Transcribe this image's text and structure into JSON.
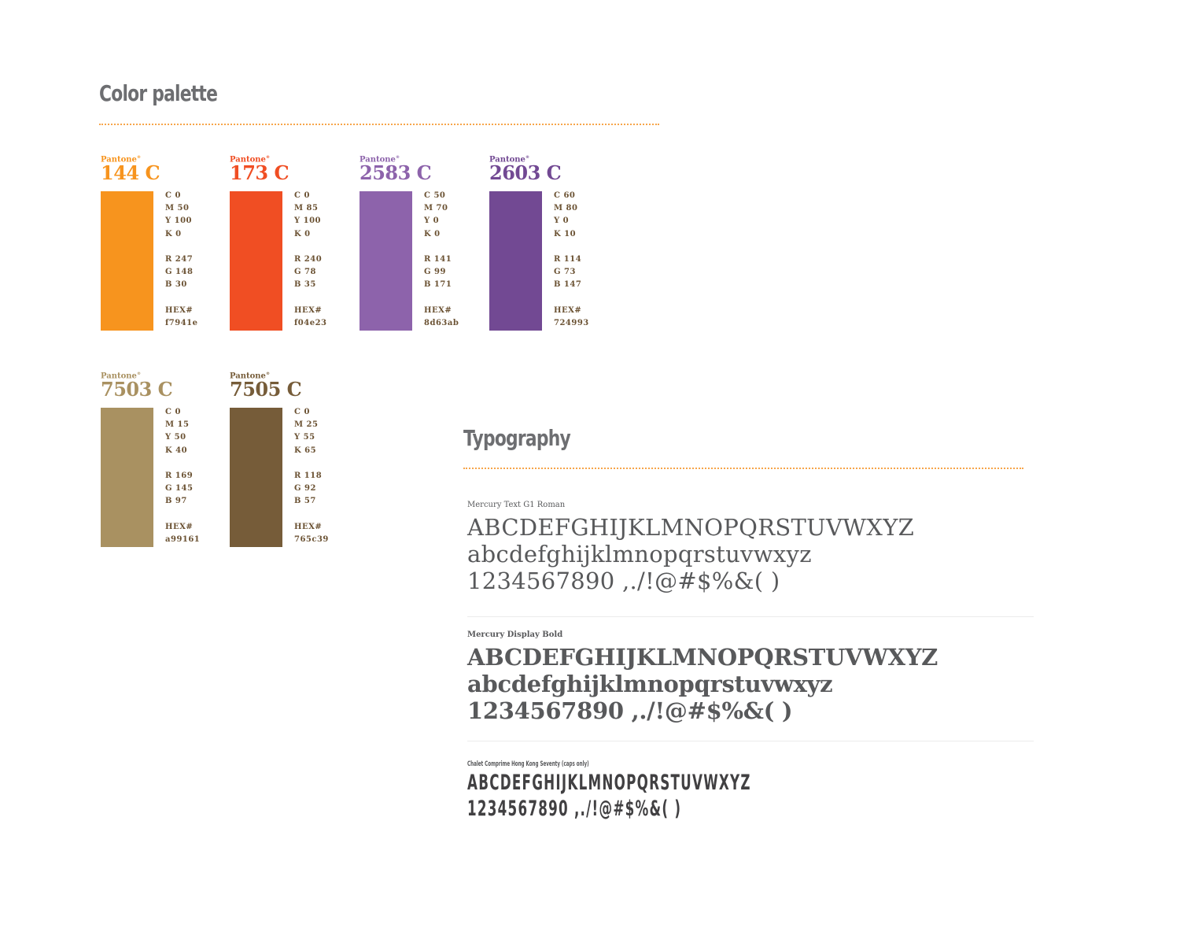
{
  "palette": {
    "title": "Color palette",
    "swatches": [
      {
        "label": "Pantone",
        "code": "144 C",
        "color": "#f7941e",
        "text_color": "#f7941e",
        "c": "C 0",
        "m": "M 50",
        "y": "Y 100",
        "k": "K 0",
        "r": "R 247",
        "g": "G 148",
        "b": "B 30",
        "hex_label": "HEX#",
        "hex": "f7941e"
      },
      {
        "label": "Pantone",
        "code": "173 C",
        "color": "#f04e23",
        "text_color": "#f04e23",
        "c": "C 0",
        "m": "M 85",
        "y": "Y 100",
        "k": "K 0",
        "r": "R 240",
        "g": "G 78",
        "b": "B 35",
        "hex_label": "HEX#",
        "hex": "f04e23"
      },
      {
        "label": "Pantone",
        "code": "2583 C",
        "color": "#8d63ab",
        "text_color": "#8d63ab",
        "c": "C 50",
        "m": "M 70",
        "y": "Y 0",
        "k": "K 0",
        "r": "R 141",
        "g": "G 99",
        "b": "B 171",
        "hex_label": "HEX#",
        "hex": "8d63ab"
      },
      {
        "label": "Pantone",
        "code": "2603 C",
        "color": "#724993",
        "text_color": "#724993",
        "c": "C 60",
        "m": "M 80",
        "y": "Y 0",
        "k": "K 10",
        "r": "R 114",
        "g": "G 73",
        "b": "B 147",
        "hex_label": "HEX#",
        "hex": "724993"
      },
      {
        "label": "Pantone",
        "code": "7503 C",
        "color": "#a99161",
        "text_color": "#a99161",
        "c": "C 0",
        "m": "M 15",
        "y": "Y 50",
        "k": "K 40",
        "r": "R 169",
        "g": "G 145",
        "b": "B 97",
        "hex_label": "HEX#",
        "hex": "a99161"
      },
      {
        "label": "Pantone",
        "code": "7505 C",
        "color": "#765c39",
        "text_color": "#765c39",
        "c": "C 0",
        "m": "M 25",
        "y": "Y 55",
        "k": "K 65",
        "r": "R 118",
        "g": "G 92",
        "b": "B 57",
        "hex_label": "HEX#",
        "hex": "765c39"
      }
    ]
  },
  "typography": {
    "title": "Typography",
    "fonts": [
      {
        "name": "Mercury Text G1 Roman",
        "upper": "ABCDEFGHIJKLMNOPQRSTUVWXYZ",
        "lower": "abcdefghijklmnopqrstuvwxyz",
        "numbers": "1234567890 ,./!@#$%&( )"
      },
      {
        "name": "Mercury Display Bold",
        "upper": "ABCDEFGHIJKLMNOPQRSTUVWXYZ",
        "lower": "abcdefghijklmnopqrstuvwxyz",
        "numbers": "1234567890 ,./!@#$%&( )"
      },
      {
        "name": "Chalet Comprime Hong Kong Seventy (caps only)",
        "upper": "ABCDEFGHIJKLMNOPQRSTUVWXYZ",
        "numbers": "1234567890 ,./!@#$%&( )"
      }
    ]
  },
  "colors": {
    "heading": "#6d6e71",
    "rule": "#f7a54a",
    "spec_text": "#6b5233",
    "type_text": "#58595b"
  }
}
